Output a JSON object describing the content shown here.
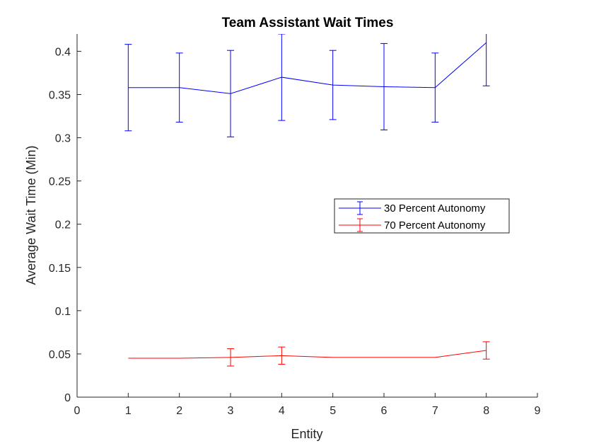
{
  "chart_data": {
    "type": "line",
    "title": "Team Assistant Wait Times",
    "xlabel": "Entity",
    "ylabel": "Average Wait Time (Min)",
    "xlim": [
      0,
      9
    ],
    "ylim": [
      0,
      0.42
    ],
    "xticks": [
      0,
      1,
      2,
      3,
      4,
      5,
      6,
      7,
      8,
      9
    ],
    "yticks": [
      0,
      0.05,
      0.1,
      0.15,
      0.2,
      0.25,
      0.3,
      0.35,
      0.4
    ],
    "ytick_labels": [
      "0",
      "0.05",
      "0.1",
      "0.15",
      "0.2",
      "0.25",
      "0.3",
      "0.35",
      "0.4"
    ],
    "grid": false,
    "legend": "center-right",
    "series": [
      {
        "name": "30 Percent Autonomy",
        "color": "#0000ff",
        "x": [
          1,
          2,
          3,
          4,
          5,
          6,
          7,
          8
        ],
        "y": [
          0.358,
          0.358,
          0.351,
          0.37,
          0.361,
          0.359,
          0.358,
          0.41
        ],
        "err": [
          0.05,
          0.04,
          0.05,
          0.05,
          0.04,
          0.05,
          0.04,
          0.05
        ]
      },
      {
        "name": "70 Percent Autonomy",
        "color": "#ff0000",
        "x": [
          1,
          2,
          3,
          4,
          5,
          6,
          7,
          8
        ],
        "y": [
          0.045,
          0.045,
          0.046,
          0.048,
          0.046,
          0.046,
          0.046,
          0.054
        ],
        "err": [
          0.0,
          0.0,
          0.01,
          0.01,
          0.0,
          0.0,
          0.0,
          0.01
        ]
      }
    ]
  }
}
